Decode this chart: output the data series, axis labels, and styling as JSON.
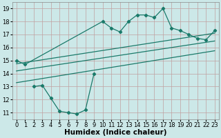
{
  "bg_color": "#cce8e8",
  "grid_color": "#c0a0a0",
  "line_color": "#1a7a6a",
  "line_width": 0.9,
  "marker": "D",
  "marker_size": 2.2,
  "xlabel": "Humidex (Indice chaleur)",
  "xlabel_fontsize": 7.5,
  "tick_fontsize": 6,
  "xlim": [
    -0.5,
    23.5
  ],
  "ylim": [
    10.5,
    19.5
  ],
  "yticks": [
    11,
    12,
    13,
    14,
    15,
    16,
    17,
    18,
    19
  ],
  "xticks": [
    0,
    1,
    2,
    3,
    4,
    5,
    6,
    7,
    8,
    9,
    10,
    11,
    12,
    13,
    14,
    15,
    16,
    17,
    18,
    19,
    20,
    21,
    22,
    23
  ],
  "curve1_x": [
    0,
    1,
    10,
    11,
    12,
    13,
    14,
    15,
    16,
    17,
    18,
    19,
    20,
    21,
    22,
    23
  ],
  "curve1_y": [
    15.0,
    14.7,
    18.0,
    17.5,
    17.2,
    18.0,
    18.5,
    18.5,
    18.3,
    19.0,
    17.5,
    17.3,
    17.0,
    16.7,
    16.6,
    17.3
  ],
  "curve2_x": [
    2,
    3,
    4,
    5,
    6,
    7,
    8,
    9
  ],
  "curve2_y": [
    13.0,
    13.1,
    12.1,
    11.1,
    11.0,
    10.9,
    11.2,
    14.0
  ],
  "line1_x": [
    0,
    23
  ],
  "line1_y": [
    14.75,
    17.1
  ],
  "line2_x": [
    0,
    23
  ],
  "line2_y": [
    14.2,
    16.5
  ],
  "line3_x": [
    0,
    23
  ],
  "line3_y": [
    13.3,
    15.75
  ]
}
